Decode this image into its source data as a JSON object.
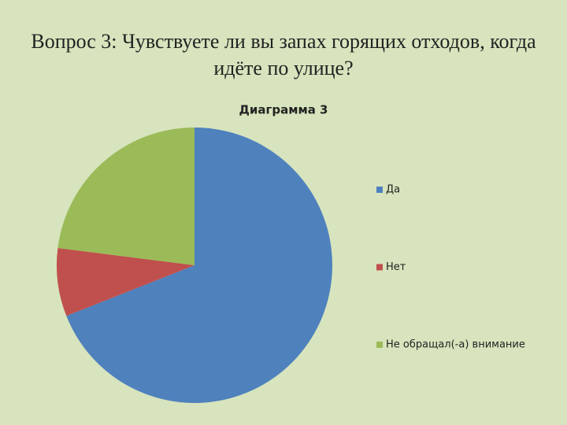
{
  "slide_title": "Вопрос 3: Чувствуете ли вы запах горящих отходов, когда идёте по улице?",
  "chart_data": {
    "type": "pie",
    "title": "Диаграмма 3",
    "categories": [
      "Да",
      "Нет",
      "Не обращал(-а) внимание"
    ],
    "values": [
      69,
      8,
      23
    ],
    "colors": [
      "#4f81bd",
      "#c0504d",
      "#9bbb59"
    ],
    "legend": "right"
  }
}
